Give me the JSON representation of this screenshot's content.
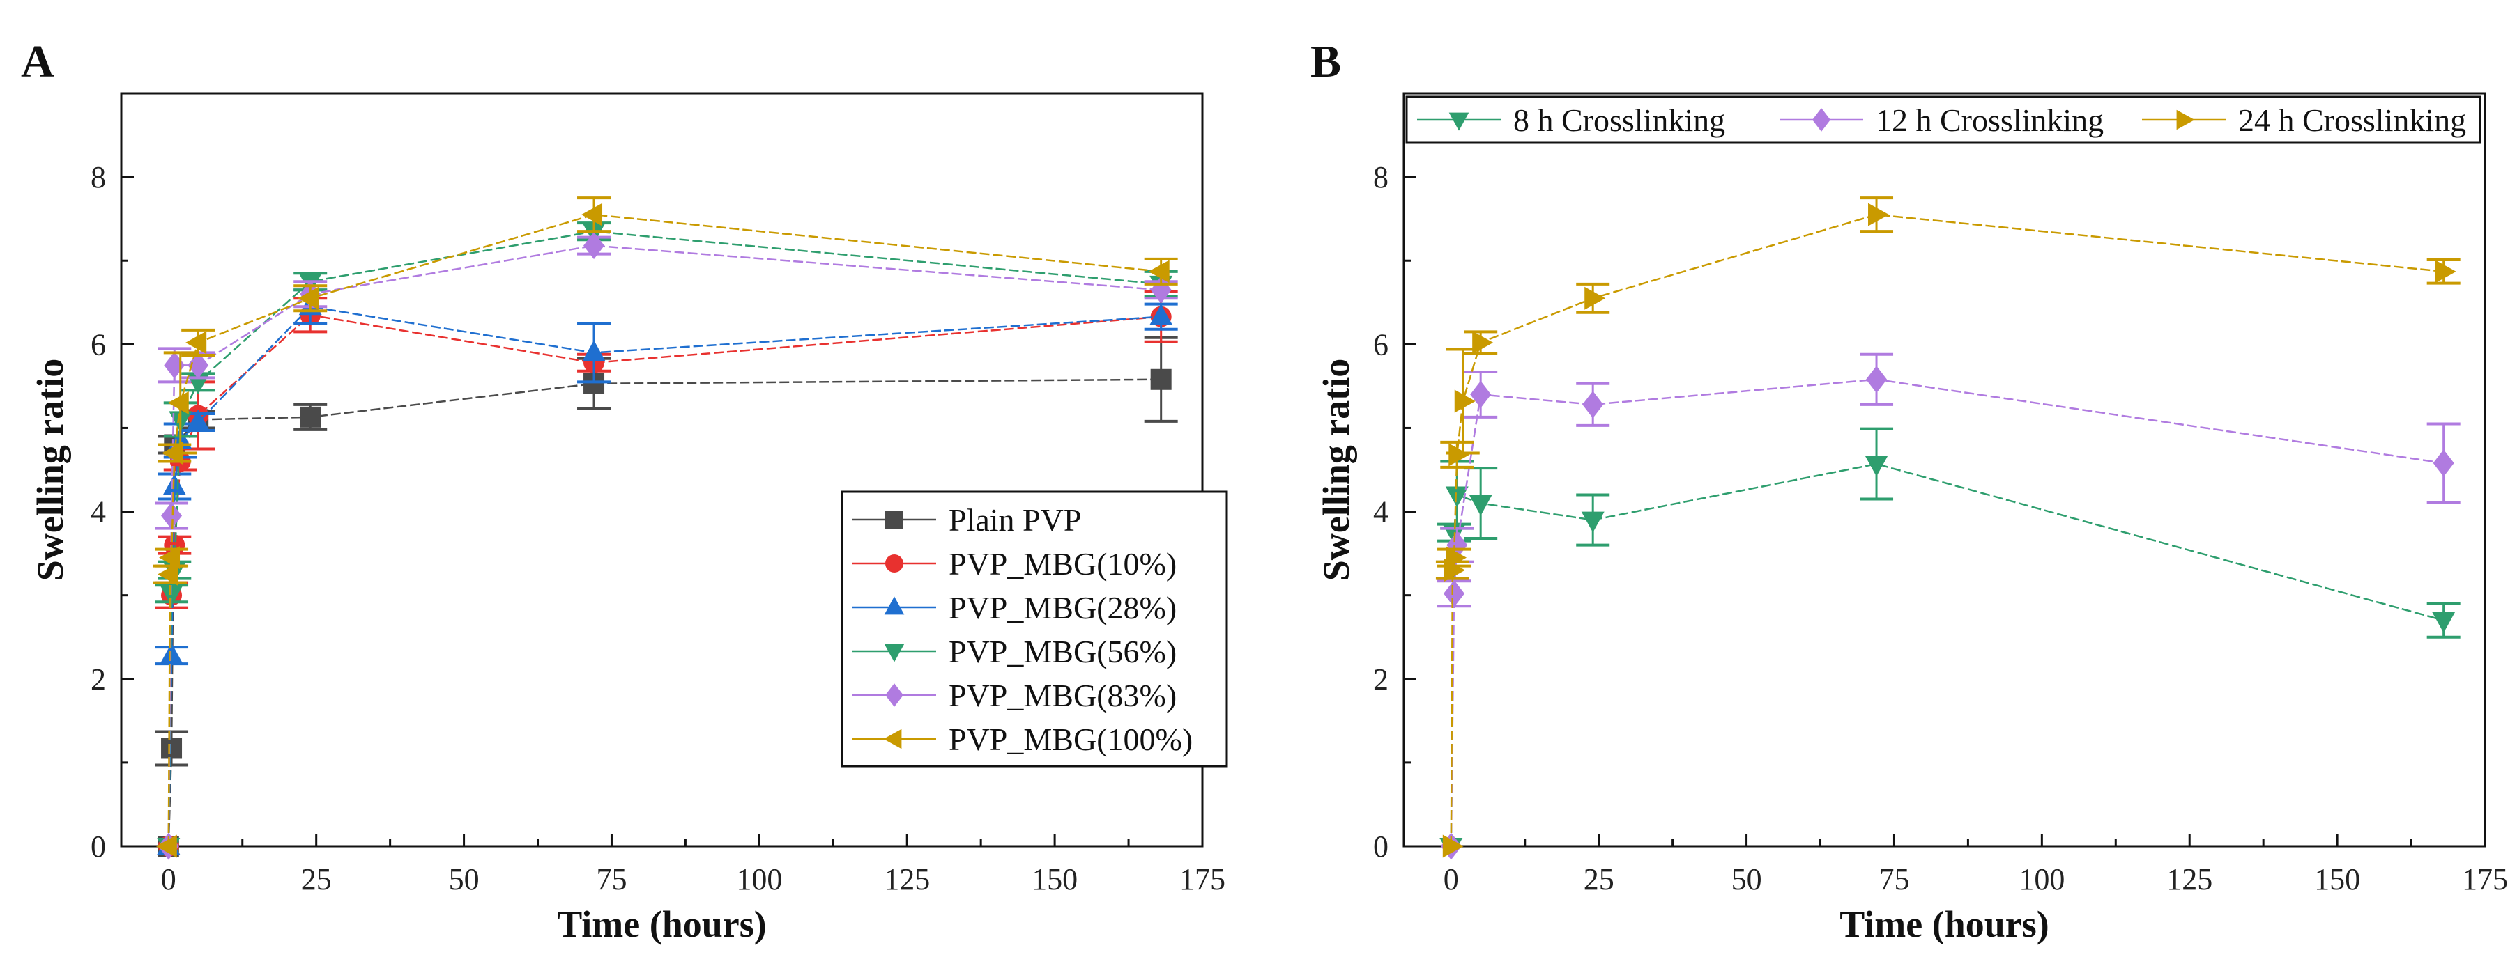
{
  "chart_data": [
    {
      "panel_label": "A",
      "type": "line",
      "xlabel": "Time (hours)",
      "ylabel": "Swelling ratio",
      "xlim": [
        -8,
        175
      ],
      "ylim": [
        0,
        9
      ],
      "xticks": [
        0,
        25,
        50,
        75,
        100,
        125,
        150,
        175
      ],
      "yticks": [
        0,
        2,
        4,
        6,
        8
      ],
      "legend_position": "center-right",
      "grid": false,
      "series": [
        {
          "name": "Plain PVP",
          "color": "#4a4a4a",
          "marker": "square",
          "x": [
            0,
            0.5,
            1,
            5,
            24,
            72,
            168
          ],
          "y": [
            0,
            1.17,
            4.8,
            5.1,
            5.13,
            5.53,
            5.58
          ],
          "err": [
            0,
            0.2,
            0.1,
            0.1,
            0.15,
            0.3,
            0.5
          ]
        },
        {
          "name": "PVP_MBG(10%)",
          "color": "#e8312f",
          "marker": "circle",
          "x": [
            0,
            0.5,
            1,
            2,
            5,
            24,
            72,
            168
          ],
          "y": [
            0,
            3.0,
            3.6,
            4.6,
            5.15,
            6.35,
            5.78,
            6.33
          ],
          "err": [
            0,
            0.15,
            0.1,
            0.1,
            0.4,
            0.2,
            0.1,
            0.3
          ]
        },
        {
          "name": "PVP_MBG(28%)",
          "color": "#1f6fd0",
          "marker": "triangle-up",
          "x": [
            0,
            0.5,
            1,
            2,
            5,
            24,
            72,
            168
          ],
          "y": [
            0,
            2.28,
            4.3,
            4.85,
            5.07,
            6.45,
            5.9,
            6.33
          ],
          "err": [
            0,
            0.1,
            0.15,
            0.2,
            0.1,
            0.2,
            0.35,
            0.15
          ]
        },
        {
          "name": "PVP_MBG(56%)",
          "color": "#2e9e6e",
          "marker": "triangle-down",
          "x": [
            0,
            0.5,
            1,
            2,
            5,
            24,
            72,
            168
          ],
          "y": [
            0,
            3.02,
            3.3,
            5.1,
            5.55,
            6.75,
            7.35,
            6.72
          ],
          "err": [
            0,
            0.1,
            0.1,
            0.2,
            0.1,
            0.1,
            0.1,
            0.15
          ]
        },
        {
          "name": "PVP_MBG(83%)",
          "color": "#b07be0",
          "marker": "diamond",
          "x": [
            0,
            0.5,
            1,
            5,
            24,
            72,
            168
          ],
          "y": [
            0,
            3.95,
            5.75,
            5.75,
            6.6,
            7.18,
            6.65
          ],
          "err": [
            0,
            0.15,
            0.2,
            0.15,
            0.15,
            0.1,
            0.1
          ]
        },
        {
          "name": "PVP_MBG(100%)",
          "color": "#c99a00",
          "marker": "triangle-left",
          "x": [
            0,
            0.25,
            0.5,
            1,
            2,
            5,
            24,
            72,
            168
          ],
          "y": [
            0,
            3.25,
            3.45,
            4.7,
            5.3,
            6.02,
            6.55,
            7.55,
            6.87
          ],
          "err": [
            0,
            0.1,
            0.1,
            0.1,
            0.6,
            0.15,
            0.15,
            0.2,
            0.15
          ]
        }
      ]
    },
    {
      "panel_label": "B",
      "type": "line",
      "xlabel": "Time (hours)",
      "ylabel": "Swelling ratio",
      "xlim": [
        -8,
        175
      ],
      "ylim": [
        0,
        9
      ],
      "xticks": [
        0,
        25,
        50,
        75,
        100,
        125,
        150,
        175
      ],
      "yticks": [
        0,
        2,
        4,
        6,
        8
      ],
      "legend_position": "top",
      "grid": false,
      "series": [
        {
          "name": "8 h Crosslinking",
          "color": "#2e9e6e",
          "marker": "triangle-down",
          "x": [
            0,
            0.5,
            1,
            5,
            24,
            72,
            168
          ],
          "y": [
            0,
            3.75,
            4.2,
            4.1,
            3.9,
            4.57,
            2.7
          ],
          "err": [
            0,
            0.1,
            0.4,
            0.42,
            0.3,
            0.42,
            0.2
          ]
        },
        {
          "name": "12 h Crosslinking",
          "color": "#b07be0",
          "marker": "diamond",
          "x": [
            0,
            0.5,
            1,
            5,
            24,
            72,
            168
          ],
          "y": [
            0,
            3.02,
            3.6,
            5.4,
            5.28,
            5.58,
            4.58
          ],
          "err": [
            0,
            0.15,
            0.2,
            0.27,
            0.25,
            0.3,
            0.47
          ]
        },
        {
          "name": "24 h Crosslinking",
          "color": "#c99a00",
          "marker": "triangle-right",
          "x": [
            0,
            0.25,
            0.5,
            1,
            2,
            5,
            24,
            72,
            168
          ],
          "y": [
            0,
            3.3,
            3.45,
            4.68,
            5.32,
            6.02,
            6.55,
            7.55,
            6.87
          ],
          "err": [
            0,
            0.1,
            0.1,
            0.15,
            0.62,
            0.13,
            0.17,
            0.2,
            0.14
          ]
        }
      ]
    }
  ]
}
